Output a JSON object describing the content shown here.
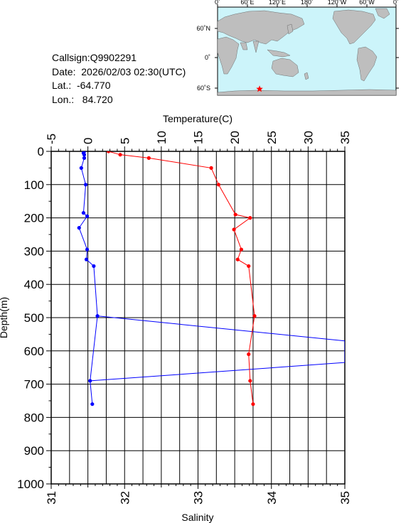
{
  "info": {
    "callsign": "Callsign:Q9902291",
    "date": "Date:  2026/02/03 02:30(UTC)",
    "lat": "Lat.:  -64.770",
    "lon": "Lon.:   84.720"
  },
  "map": {
    "lon_labels": [
      "0˚",
      "60˚E",
      "120˚E",
      "180˚",
      "120˚W",
      "60˚W",
      "0˚"
    ],
    "lat_labels": [
      "60˚N",
      "0˚",
      "60˚S"
    ],
    "ocean_color": "#ccf4fa",
    "land_color": "#bebebe",
    "marker_color": "#ff0000",
    "marker_lon": 84.72,
    "marker_lat": -64.77
  },
  "chart_data": {
    "type": "line",
    "ylabel": "Depth(m)",
    "ylim": [
      0,
      1000
    ],
    "y_inverted": true,
    "y_ticks": [
      "0",
      "100",
      "200",
      "300",
      "400",
      "500",
      "600",
      "700",
      "800",
      "900",
      "1000"
    ],
    "top_axis": {
      "label": "Temperature(C)",
      "lim": [
        -5,
        35
      ],
      "ticks": [
        "-5",
        "0",
        "5",
        "10",
        "15",
        "20",
        "25",
        "30",
        "35"
      ]
    },
    "bottom_axis": {
      "label": "Salinity",
      "lim": [
        31,
        35
      ],
      "ticks": [
        "31",
        "32",
        "33",
        "34",
        "35"
      ]
    },
    "grid": true,
    "series": [
      {
        "color": "#ff0000",
        "axis": "top",
        "depth": [
          0,
          10,
          20,
          50,
          100,
          190,
          200,
          235,
          295,
          325,
          345,
          495,
          610,
          690,
          760
        ],
        "values": [
          2.8,
          4.4,
          8.3,
          16.8,
          17.8,
          20.1,
          22.1,
          19.9,
          20.9,
          20.4,
          21.9,
          22.7,
          21.9,
          22.1,
          22.5
        ]
      },
      {
        "color": "#0000ff",
        "axis": "top",
        "depth": [
          0,
          5,
          10,
          20,
          50,
          100,
          185,
          195,
          230,
          295,
          325,
          345,
          495,
          690,
          760
        ],
        "values": [
          -0.5,
          -0.6,
          -0.5,
          -0.5,
          -0.9,
          -0.3,
          -0.6,
          -0.1,
          -1.2,
          -0.1,
          -0.2,
          0.8,
          1.3,
          0.3,
          0.6
        ]
      }
    ],
    "cross_line": {
      "color": "#0000ff",
      "depth": [
        495,
        570,
        635,
        690
      ],
      "values": [
        1.3,
        35,
        35,
        0.3
      ]
    }
  }
}
